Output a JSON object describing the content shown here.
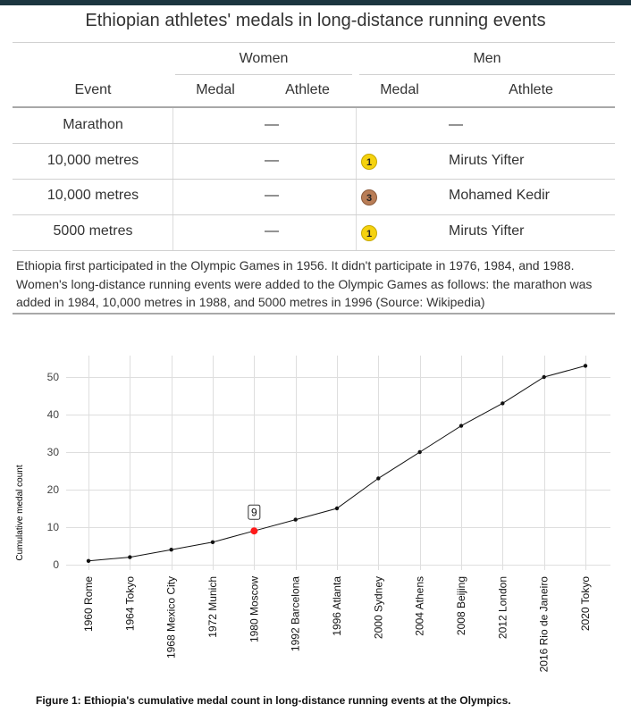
{
  "title": "Ethiopian athletes' medals in long-distance running events",
  "table": {
    "group_headers": [
      "Women",
      "Men"
    ],
    "column_headers": [
      "Event",
      "Medal",
      "Athlete",
      "Medal",
      "Athlete"
    ],
    "rows": [
      {
        "event": "Marathon",
        "women_medal": "",
        "women_athlete": "—",
        "men_medal": "",
        "men_athlete": "—"
      },
      {
        "event": "10,000 metres",
        "women_medal": "",
        "women_athlete": "—",
        "men_medal": "1",
        "men_medal_type": "gold",
        "men_athlete": "Miruts Yifter"
      },
      {
        "event": "10,000 metres",
        "women_medal": "",
        "women_athlete": "—",
        "men_medal": "3",
        "men_medal_type": "bronze",
        "men_athlete": "Mohamed Kedir"
      },
      {
        "event": "5000 metres",
        "women_medal": "",
        "women_athlete": "—",
        "men_medal": "1",
        "men_medal_type": "gold",
        "men_athlete": "Miruts Yifter"
      }
    ]
  },
  "note": [
    "Ethiopia first participated in the Olympic Games in 1956. It didn't participate in 1976, 1984, and 1988.",
    "Women's long-distance running events were added to the Olympic Games as follows: the marathon was",
    "added in 1984, 10,000 metres in 1988, and 5000 metres in 1996 (Source: Wikipedia)"
  ],
  "chart_data": {
    "type": "line",
    "categories": [
      "1960 Rome",
      "1964 Tokyo",
      "1968 Mexico City",
      "1972 Munich",
      "1980 Moscow",
      "1992 Barcelona",
      "1996 Atlanta",
      "2000 Sydney",
      "2004 Athens",
      "2008 Beijing",
      "2012 London",
      "2016 Rio de Janeiro",
      "2020 Tokyo"
    ],
    "values": [
      1,
      2,
      4,
      6,
      9,
      12,
      15,
      23,
      30,
      37,
      43,
      50,
      53
    ],
    "ylabel": "Cumulative medal count",
    "xlabel": "",
    "ylim": [
      0,
      55
    ],
    "yticks": [
      0,
      10,
      20,
      30,
      40,
      50
    ],
    "grid": true,
    "highlight": {
      "category": "1980 Moscow",
      "value": 9,
      "label": "9"
    },
    "colors": {
      "line": "#111111",
      "point": "#111111",
      "highlight": "#ff1a1a",
      "grid": "#dedede"
    }
  },
  "caption": "Figure 1: Ethiopia's cumulative medal count in long-distance running events at the Olympics."
}
